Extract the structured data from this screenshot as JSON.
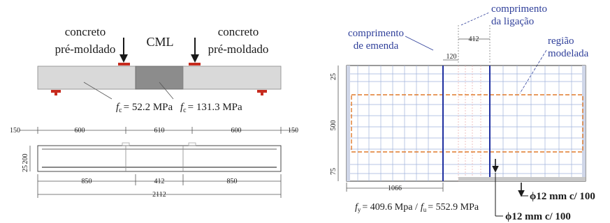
{
  "colors": {
    "ink": "#1a1a1a",
    "blue": "#2f3f9a",
    "orange": "#e07a2a",
    "red": "#c62b1e",
    "precast_fill": "#d9d9d9",
    "cml_fill": "#8c8c8c",
    "bar_blue": "#1f2fa0",
    "grid_blue": "#9fb2dc",
    "grid_pink": "#e9a9a9",
    "dim": "#555555"
  },
  "left": {
    "label_precast_left": [
      "concreto",
      "pré-moldado"
    ],
    "label_cml": "CML",
    "label_precast_right": [
      "concreto",
      "pré-moldado"
    ],
    "fc_precast": "= 52.2 MPa",
    "fc_cml": "= 131.3 MPa",
    "f_symbol": "f",
    "f_subscript": "c",
    "top_dims": [
      "150",
      "600",
      "610",
      "600",
      "150"
    ],
    "left_dims": [
      "200",
      "25"
    ],
    "bottom_dims": [
      "850",
      "412",
      "850"
    ],
    "total_length": "2112"
  },
  "right": {
    "label_comprimento_ligacao": [
      "comprimento",
      "da ligação"
    ],
    "label_comprimento_emenda": [
      "comprimento",
      "de emenda"
    ],
    "label_regiao": [
      "região",
      "modelada"
    ],
    "dim_412": "412",
    "dim_120": "120",
    "dim_25": "25",
    "dim_500": "500",
    "dim_75": "75",
    "dim_1066": "1066",
    "steel_fy": "= 409.6 Mpa /",
    "steel_fu": "= 552.9 MPa",
    "fy_subscript": "y",
    "fu_subscript": "u",
    "rebar_label_1": "ϕ12 mm c/ 100",
    "rebar_label_2": "ϕ12 mm c/ 100"
  }
}
